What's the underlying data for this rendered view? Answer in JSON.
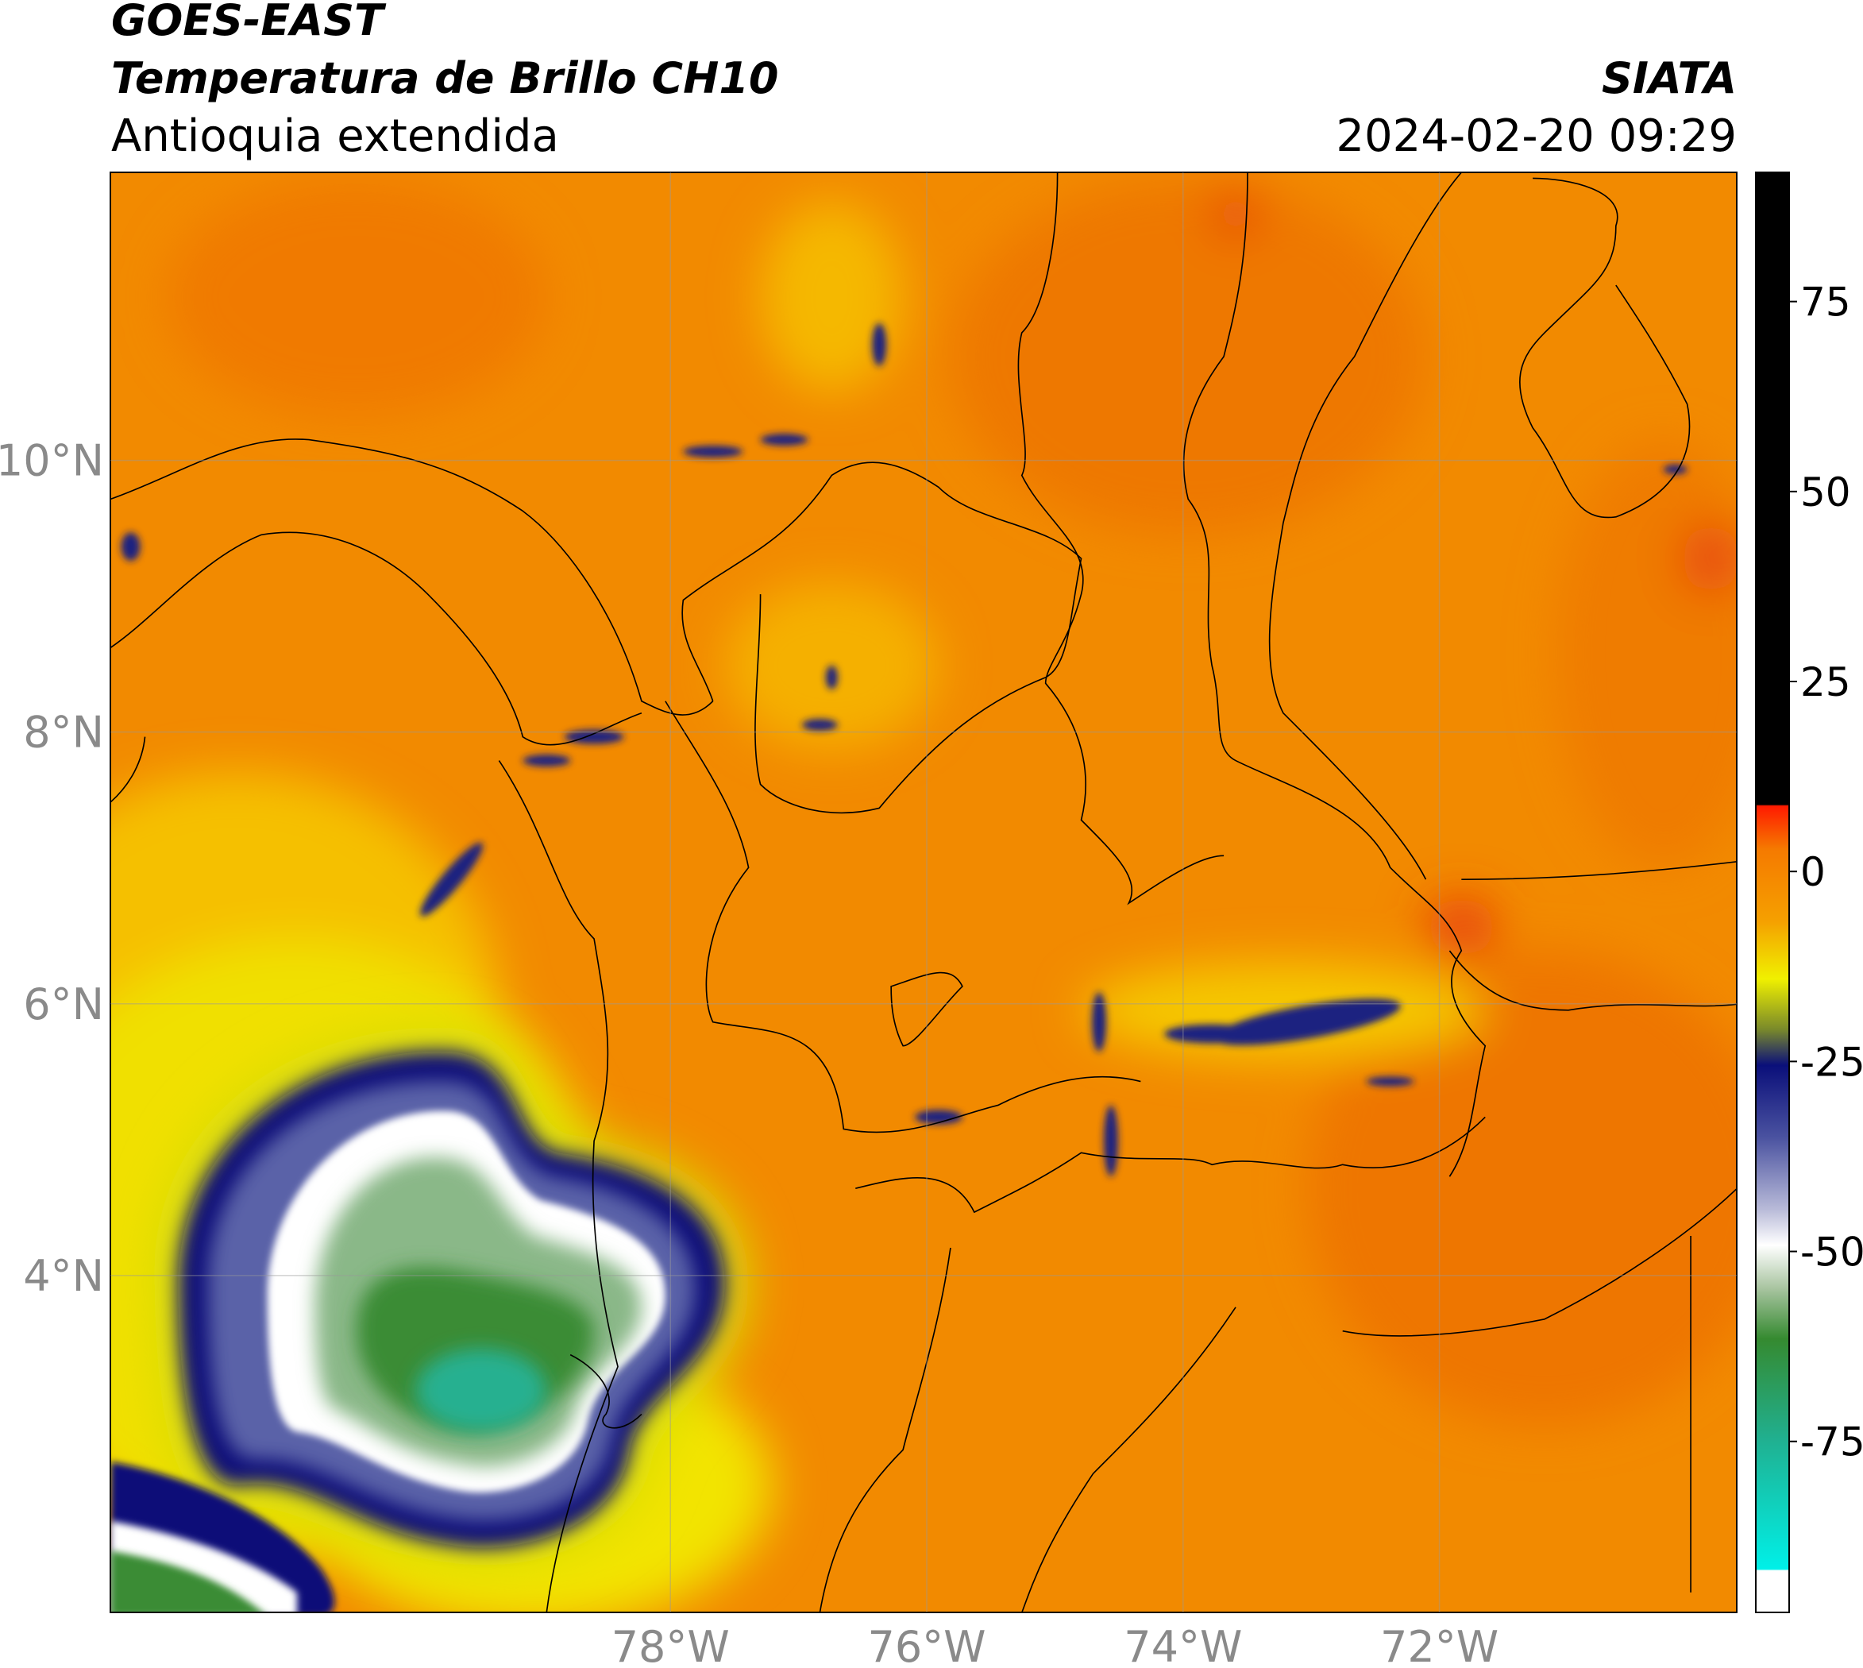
{
  "chart_data": {
    "type": "map",
    "title": "GOES-EAST",
    "subtitle": "Temperatura de Brillo CH10",
    "region": "Antioquia extendida",
    "source": "SIATA",
    "datetime": "2024-02-20 09:29",
    "xlim": [
      -82.37,
      -69.68
    ],
    "ylim": [
      1.52,
      12.12
    ],
    "xticks": [
      {
        "value": -78,
        "label": "78°W"
      },
      {
        "value": -76,
        "label": "76°W"
      },
      {
        "value": -74,
        "label": "74°W"
      },
      {
        "value": -72,
        "label": "72°W"
      }
    ],
    "yticks": [
      {
        "value": 4,
        "label": "4°N"
      },
      {
        "value": 6,
        "label": "6°N"
      },
      {
        "value": 8,
        "label": "8°N"
      },
      {
        "value": 10,
        "label": "10°N"
      }
    ],
    "grid": true,
    "colorbar": {
      "clim": [
        -97.5,
        92
      ],
      "ticks": [
        75,
        50,
        25,
        0,
        -25,
        -50,
        -75
      ]
    }
  }
}
